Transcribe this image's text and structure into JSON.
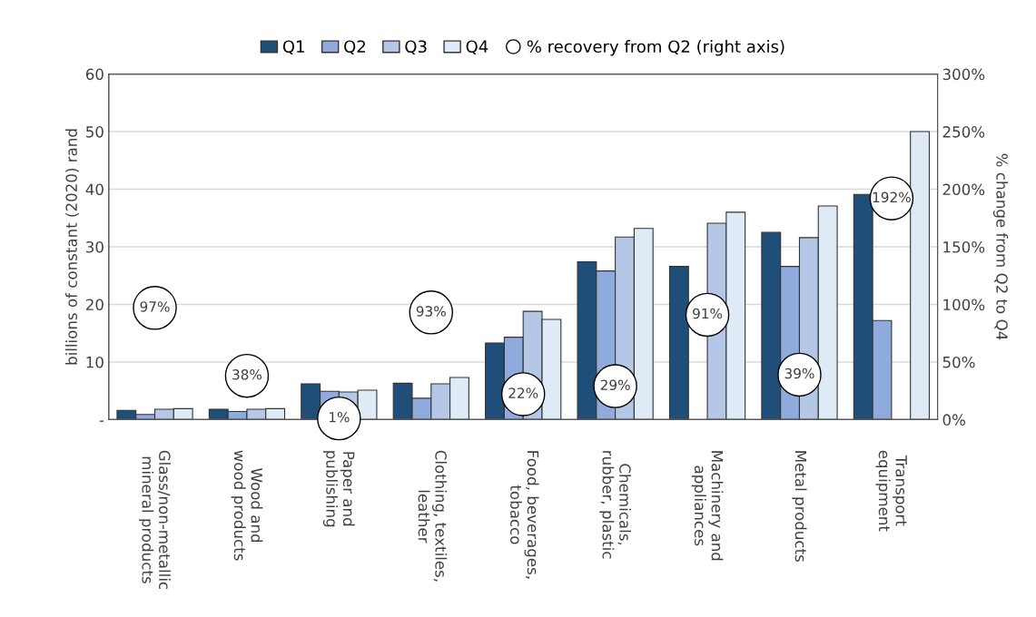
{
  "chart_data": {
    "type": "bar",
    "categories": [
      "Glass/non-metallic\nmineral products",
      "Wood and\nwood products",
      "Paper and\npublishing",
      "Clothing, textiles,\nleather",
      "Food, beverages,\ntobacco",
      "Chemicals,\nrubber, plastic",
      "Machinery and\nappliances",
      "Metal products",
      "Transport\nequipment"
    ],
    "series": [
      {
        "name": "Q1",
        "color": "#1f4e79",
        "values": [
          1.6,
          1.8,
          6.2,
          6.3,
          13.3,
          27.4,
          26.6,
          32.5,
          39.1
        ]
      },
      {
        "name": "Q2",
        "color": "#8faadc",
        "values": [
          0.9,
          1.4,
          4.9,
          3.7,
          14.3,
          25.8,
          null,
          26.6,
          17.2
        ]
      },
      {
        "name": "Q3",
        "color": "#b4c7e7",
        "values": [
          1.8,
          1.8,
          4.8,
          6.2,
          18.8,
          31.7,
          34.1,
          31.6,
          null
        ]
      },
      {
        "name": "Q4",
        "color": "#deebf7",
        "values": [
          1.9,
          1.9,
          5.1,
          7.3,
          17.4,
          33.2,
          36.0,
          37.1,
          50.0
        ]
      },
      {
        "name": "% recovery from Q2 (right axis)",
        "type": "scatter",
        "axis": "y2",
        "color": "#ffffff",
        "marker": "circle",
        "data_labels": true,
        "value_labels": [
          "97%",
          "38%",
          "1%",
          "93%",
          "22%",
          "29%",
          "91%",
          "39%",
          "192%"
        ],
        "values": [
          97,
          38,
          1,
          93,
          22,
          29,
          91,
          39,
          192
        ]
      }
    ],
    "ylabel": "billions of constant (2020) rand",
    "y2label": "% change from Q2 to Q4",
    "ylim": [
      0,
      60
    ],
    "yticks": [
      {
        "value": 0,
        "label": "-"
      },
      10,
      20,
      30,
      40,
      50,
      60
    ],
    "y2lim": [
      0,
      300
    ],
    "y2ticks": [
      {
        "value": 0,
        "label": "0%"
      },
      {
        "value": 50,
        "label": "50%"
      },
      {
        "value": 100,
        "label": "100%"
      },
      {
        "value": 150,
        "label": "150%"
      },
      {
        "value": 200,
        "label": "200%"
      },
      {
        "value": 250,
        "label": "250%"
      },
      {
        "value": 300,
        "label": "300%"
      }
    ],
    "grid": "y",
    "legend": "top"
  }
}
